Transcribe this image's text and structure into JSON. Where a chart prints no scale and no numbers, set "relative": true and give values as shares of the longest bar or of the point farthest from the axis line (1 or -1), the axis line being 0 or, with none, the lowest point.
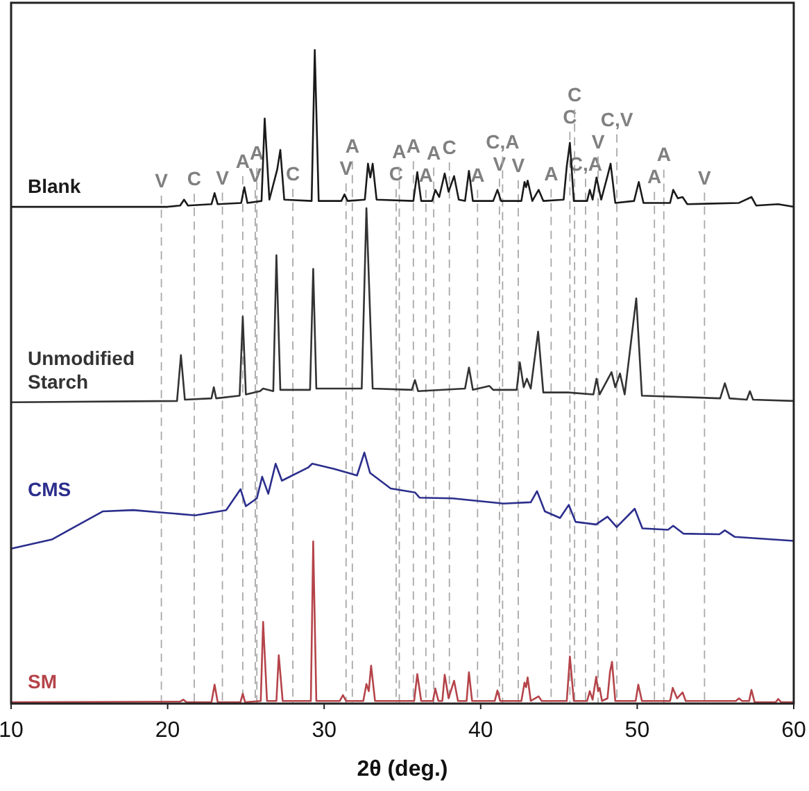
{
  "chart_data": {
    "type": "line",
    "relative": true,
    "xlabel": "2θ (deg.)",
    "xlim": [
      10,
      60
    ],
    "xticks": [
      10,
      20,
      30,
      40,
      50,
      60
    ],
    "grid": false,
    "series": [
      {
        "name": "Blank",
        "color": "#1a1a1a",
        "x": [
          10,
          20,
          20.8,
          21.05,
          21.3,
          22.8,
          23.0,
          23.2,
          24.7,
          24.9,
          25.1,
          26.0,
          26.2,
          26.5,
          27.0,
          27.2,
          27.45,
          29.2,
          29.4,
          29.65,
          31.1,
          31.3,
          31.5,
          32.6,
          32.8,
          32.95,
          33.1,
          33.35,
          35.7,
          35.95,
          36.2,
          36.9,
          37.1,
          37.35,
          37.7,
          37.95,
          38.3,
          38.6,
          39.0,
          39.25,
          39.5,
          40.8,
          41.07,
          41.3,
          42.6,
          42.8,
          42.9,
          43.0,
          43.3,
          43.7,
          44.0,
          45.3,
          45.5,
          45.7,
          45.95,
          46.8,
          46.97,
          47.15,
          47.4,
          47.7,
          48.1,
          48.3,
          48.6,
          49.8,
          50.1,
          50.4,
          52.1,
          52.3,
          52.6,
          52.9,
          53.2,
          56.5,
          57.3,
          57.6,
          59.0,
          60
        ],
        "values": [
          0.76,
          0.76,
          0.762,
          0.771,
          0.762,
          0.764,
          0.781,
          0.764,
          0.766,
          0.79,
          0.766,
          0.769,
          0.895,
          0.771,
          0.817,
          0.847,
          0.771,
          0.769,
          1.0,
          0.769,
          0.769,
          0.779,
          0.769,
          0.771,
          0.826,
          0.805,
          0.826,
          0.771,
          0.769,
          0.813,
          0.769,
          0.769,
          0.786,
          0.775,
          0.811,
          0.783,
          0.807,
          0.771,
          0.769,
          0.815,
          0.769,
          0.769,
          0.786,
          0.769,
          0.769,
          0.798,
          0.79,
          0.8,
          0.769,
          0.786,
          0.769,
          0.771,
          0.822,
          0.858,
          0.769,
          0.769,
          0.786,
          0.771,
          0.805,
          0.771,
          0.807,
          0.826,
          0.766,
          0.769,
          0.798,
          0.766,
          0.766,
          0.786,
          0.773,
          0.775,
          0.764,
          0.766,
          0.775,
          0.762,
          0.764,
          0.76
        ]
      },
      {
        "name": "Unmodified Starch",
        "color": "#333333",
        "x": [
          10,
          20.6,
          20.85,
          21.1,
          22.8,
          22.95,
          23.1,
          24.6,
          24.8,
          25.0,
          25.9,
          26.1,
          26.75,
          26.95,
          27.2,
          29.1,
          29.3,
          29.5,
          32.4,
          32.7,
          33.1,
          35.6,
          35.8,
          36.0,
          39.0,
          39.25,
          39.5,
          40.55,
          40.8,
          42.3,
          42.5,
          42.75,
          42.95,
          43.2,
          43.67,
          44.0,
          45.6,
          47.2,
          47.4,
          47.6,
          48.36,
          48.6,
          48.9,
          49.2,
          49.94,
          50.3,
          55.3,
          55.6,
          55.9,
          57.0,
          57.2,
          57.4,
          60
        ],
        "values": [
          0.461,
          0.463,
          0.533,
          0.465,
          0.467,
          0.484,
          0.467,
          0.471,
          0.592,
          0.473,
          0.478,
          0.482,
          0.478,
          0.686,
          0.48,
          0.48,
          0.665,
          0.482,
          0.482,
          0.758,
          0.482,
          0.48,
          0.495,
          0.478,
          0.482,
          0.514,
          0.48,
          0.486,
          0.48,
          0.48,
          0.522,
          0.484,
          0.497,
          0.482,
          0.569,
          0.476,
          0.476,
          0.473,
          0.497,
          0.473,
          0.507,
          0.484,
          0.505,
          0.473,
          0.62,
          0.471,
          0.467,
          0.49,
          0.467,
          0.465,
          0.478,
          0.465,
          0.463
        ]
      },
      {
        "name": "CMS",
        "color": "#2b2e8c",
        "x": [
          10,
          12.6,
          15.85,
          17.8,
          19.8,
          21.76,
          23.74,
          24.66,
          25.0,
          25.7,
          26.04,
          26.43,
          26.9,
          27.3,
          28.97,
          29.24,
          30.63,
          32.1,
          32.57,
          32.93,
          34.25,
          35.8,
          36.1,
          38.2,
          41.47,
          43.2,
          43.6,
          44.1,
          45.07,
          45.63,
          46.06,
          47.37,
          48.1,
          48.69,
          49.84,
          50.33,
          51.97,
          52.3,
          52.95,
          55.25,
          55.6,
          56.24,
          60
        ],
        "values": [
          0.237,
          0.251,
          0.294,
          0.296,
          0.292,
          0.288,
          0.296,
          0.328,
          0.302,
          0.314,
          0.347,
          0.321,
          0.367,
          0.341,
          0.361,
          0.367,
          0.359,
          0.349,
          0.384,
          0.353,
          0.329,
          0.323,
          0.315,
          0.314,
          0.306,
          0.308,
          0.325,
          0.294,
          0.284,
          0.304,
          0.278,
          0.274,
          0.286,
          0.27,
          0.298,
          0.268,
          0.266,
          0.272,
          0.26,
          0.259,
          0.265,
          0.255,
          0.249
        ]
      },
      {
        "name": "SM",
        "color": "#b5444a",
        "x": [
          10,
          20.8,
          21.0,
          21.2,
          22.8,
          23.0,
          23.2,
          24.65,
          24.8,
          24.95,
          25.95,
          26.1,
          26.35,
          26.95,
          27.1,
          27.35,
          29.15,
          29.3,
          29.5,
          31.0,
          31.2,
          31.4,
          32.5,
          32.7,
          32.85,
          33.0,
          33.25,
          35.75,
          35.95,
          36.2,
          36.95,
          37.1,
          37.3,
          37.55,
          37.7,
          37.95,
          38.3,
          38.55,
          39.1,
          39.25,
          39.45,
          40.9,
          41.07,
          41.25,
          42.6,
          42.8,
          42.9,
          43.0,
          43.2,
          43.7,
          43.9,
          45.5,
          45.7,
          45.95,
          46.8,
          46.97,
          47.15,
          47.38,
          47.5,
          47.6,
          47.75,
          48.1,
          48.26,
          48.39,
          48.6,
          49.9,
          50.07,
          50.3,
          52.1,
          52.27,
          52.55,
          52.9,
          53.1,
          56.3,
          56.5,
          56.7,
          57.15,
          57.3,
          57.5,
          58.85,
          59.0,
          59.2,
          60
        ],
        "values": [
          0.002,
          0.003,
          0.006,
          0.002,
          0.002,
          0.029,
          0.002,
          0.002,
          0.015,
          0.002,
          0.004,
          0.125,
          0.004,
          0.004,
          0.074,
          0.004,
          0.004,
          0.248,
          0.004,
          0.004,
          0.013,
          0.004,
          0.004,
          0.03,
          0.019,
          0.058,
          0.004,
          0.004,
          0.045,
          0.004,
          0.004,
          0.023,
          0.004,
          0.004,
          0.044,
          0.008,
          0.035,
          0.004,
          0.004,
          0.048,
          0.004,
          0.004,
          0.02,
          0.004,
          0.004,
          0.032,
          0.025,
          0.04,
          0.004,
          0.011,
          0.004,
          0.004,
          0.072,
          0.004,
          0.004,
          0.019,
          0.006,
          0.041,
          0.019,
          0.024,
          0.004,
          0.008,
          0.048,
          0.064,
          0.004,
          0.004,
          0.029,
          0.004,
          0.004,
          0.024,
          0.008,
          0.017,
          0.004,
          0.004,
          0.008,
          0.004,
          0.004,
          0.021,
          0.002,
          0.002,
          0.007,
          0.002,
          0.002
        ]
      }
    ],
    "ref_lines": [
      {
        "axis": "x",
        "value": 19.6,
        "label": "V"
      },
      {
        "axis": "x",
        "value": 21.7,
        "label": "C"
      },
      {
        "axis": "x",
        "value": 23.5,
        "label": "V"
      },
      {
        "axis": "x",
        "value": 24.8,
        "label": "A"
      },
      {
        "axis": "x",
        "value": 25.6,
        "label": "V"
      },
      {
        "axis": "x",
        "value": 25.7,
        "label": "A"
      },
      {
        "axis": "x",
        "value": 28.0,
        "label": "C"
      },
      {
        "axis": "x",
        "value": 31.4,
        "label": "V"
      },
      {
        "axis": "x",
        "value": 31.8,
        "label": "A"
      },
      {
        "axis": "x",
        "value": 34.6,
        "label": "C"
      },
      {
        "axis": "x",
        "value": 34.8,
        "label": "A"
      },
      {
        "axis": "x",
        "value": 35.7,
        "label": "A"
      },
      {
        "axis": "x",
        "value": 36.5,
        "label": "A"
      },
      {
        "axis": "x",
        "value": 37.0,
        "label": "A"
      },
      {
        "axis": "x",
        "value": 38.0,
        "label": "C"
      },
      {
        "axis": "x",
        "value": 39.8,
        "label": "A"
      },
      {
        "axis": "x",
        "value": 41.2,
        "label": "V"
      },
      {
        "axis": "x",
        "value": 41.4,
        "label": "C,A"
      },
      {
        "axis": "x",
        "value": 42.4,
        "label": "V"
      },
      {
        "axis": "x",
        "value": 44.5,
        "label": "A"
      },
      {
        "axis": "x",
        "value": 45.7,
        "label": "C"
      },
      {
        "axis": "x",
        "value": 46.0,
        "label": "C"
      },
      {
        "axis": "x",
        "value": 46.7,
        "label": "C,A"
      },
      {
        "axis": "x",
        "value": 47.5,
        "label": "V"
      },
      {
        "axis": "x",
        "value": 48.7,
        "label": "C,V"
      },
      {
        "axis": "x",
        "value": 51.1,
        "label": "A"
      },
      {
        "axis": "x",
        "value": 51.7,
        "label": "A"
      },
      {
        "axis": "x",
        "value": 54.3,
        "label": "V"
      }
    ]
  }
}
